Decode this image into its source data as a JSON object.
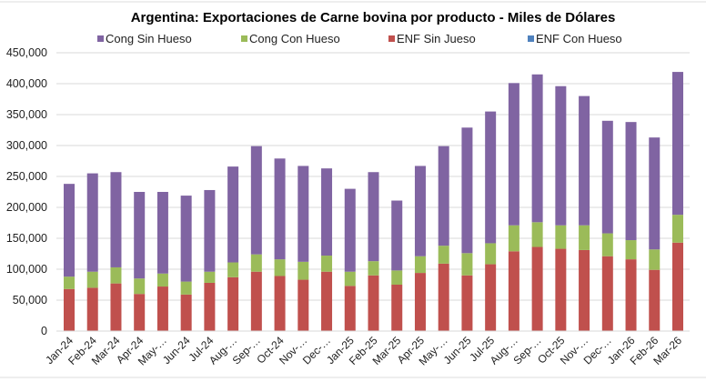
{
  "chart_data": {
    "type": "bar",
    "stacked": true,
    "title": "Argentina: Exportaciones de Carne bovina por producto - Miles de Dólares",
    "xlabel": "",
    "ylabel": "",
    "ylim": [
      0,
      450000
    ],
    "yticks": [
      0,
      50000,
      100000,
      150000,
      200000,
      250000,
      300000,
      350000,
      400000,
      450000
    ],
    "ytick_labels": [
      "0",
      "50,000",
      "100,000",
      "150,000",
      "200,000",
      "250,000",
      "300,000",
      "350,000",
      "400,000",
      "450,000"
    ],
    "grid": true,
    "legend_position": "top",
    "categories": [
      "Jan-24",
      "Feb-24",
      "Mar-24",
      "Apr-24",
      "May-…",
      "Jun-24",
      "Jul-24",
      "Aug-…",
      "Sep-…",
      "Oct-24",
      "Nov-…",
      "Dec-…",
      "Jan-25",
      "Feb-25",
      "Mar-25",
      "Apr-25",
      "May-…",
      "Jun-25",
      "Jul-25",
      "Aug-…",
      "Sep-…",
      "Oct-25",
      "Nov-…",
      "Dec-…",
      "Jan-26",
      "Feb-26",
      "Mar-26"
    ],
    "series": [
      {
        "name": "ENF Sin Jueso",
        "color": "#c0504d",
        "values": [
          68000,
          70000,
          77000,
          60000,
          72000,
          59000,
          78000,
          87000,
          96000,
          89000,
          83000,
          96000,
          73000,
          90000,
          75000,
          94000,
          109000,
          90000,
          108000,
          129000,
          136000,
          133000,
          131000,
          121000,
          116000,
          99000,
          143000
        ]
      },
      {
        "name": "Cong Con Hueso",
        "color": "#9bbb59",
        "values": [
          20000,
          26000,
          26000,
          25000,
          21000,
          21000,
          18000,
          24000,
          28000,
          27000,
          29000,
          26000,
          23000,
          23000,
          23000,
          27000,
          29000,
          36000,
          34000,
          42000,
          40000,
          38000,
          40000,
          37000,
          31000,
          33000,
          45000
        ]
      },
      {
        "name": "Cong Sin Hueso",
        "color": "#8064a2",
        "values": [
          150000,
          159000,
          154000,
          140000,
          132000,
          139000,
          132000,
          155000,
          175000,
          163000,
          155000,
          141000,
          134000,
          144000,
          113000,
          146000,
          161000,
          203000,
          213000,
          230000,
          239000,
          225000,
          209000,
          182000,
          191000,
          181000,
          231000
        ]
      },
      {
        "name": "ENF Con Hueso",
        "color": "#4f81bd",
        "values": [
          0,
          0,
          0,
          0,
          0,
          0,
          0,
          0,
          0,
          0,
          0,
          0,
          0,
          0,
          0,
          0,
          0,
          0,
          0,
          0,
          0,
          0,
          0,
          0,
          0,
          0,
          0
        ]
      }
    ],
    "legend_order": [
      "Cong Sin Hueso",
      "Cong Con Hueso",
      "ENF Sin Jueso",
      "ENF Con Hueso"
    ]
  }
}
